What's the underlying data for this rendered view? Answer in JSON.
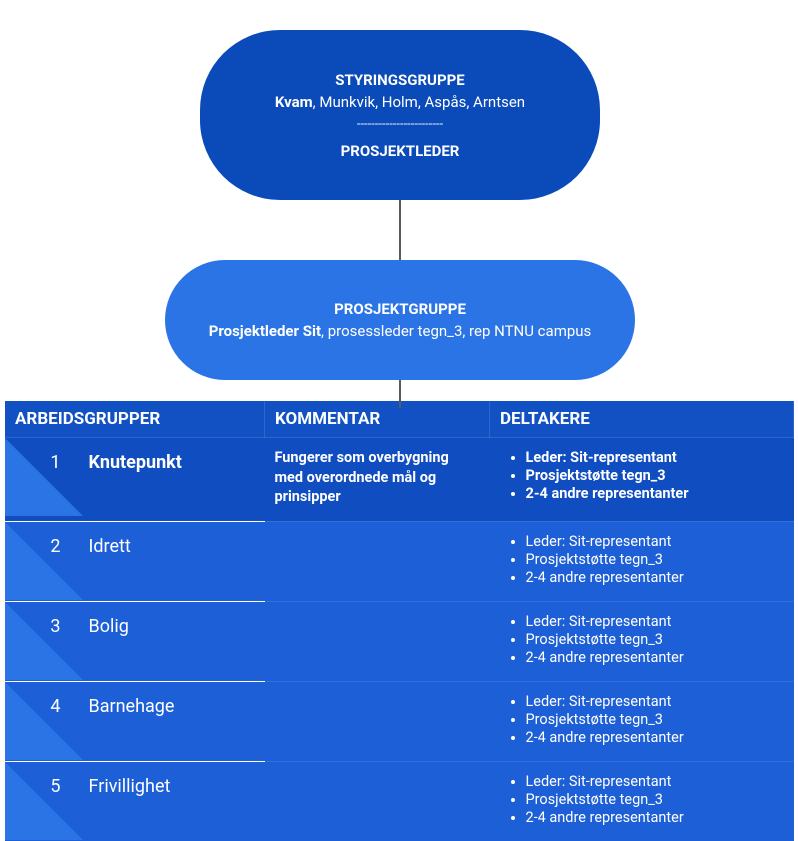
{
  "colors": {
    "node_top_bg": "#0a4ab9",
    "node_mid_bg": "#2b74e6",
    "header_bg": "#1151c3",
    "row_bold_bg": "#0f4dc0",
    "row_bg": "#1d5fd7",
    "triangle_bg": "#2b74e6",
    "connector": "#5a5a5a"
  },
  "top_node": {
    "title": "STYRINGSGRUPPE",
    "members_bold": "Kvam",
    "members_rest": ", Munkvik, Holm, Aspås, Arntsen",
    "divider": "------------------------",
    "subtitle": "PROSJEKTLEDER"
  },
  "mid_node": {
    "title": "PROSJEKTGRUPPE",
    "members_bold": "Prosjektleder Sit",
    "members_rest": ", prosessleder tegn_3, rep NTNU campus"
  },
  "table": {
    "headers": {
      "col1": "ARBEIDSGRUPPER",
      "col2": "KOMMENTAR",
      "col3": "DELTAKERE"
    },
    "rows": [
      {
        "num": "1",
        "name": "Knutepunkt",
        "bold": true,
        "kommentar": "Fungerer som overbygning med overordnede mål og prinsipper",
        "deltakere": [
          "Leder: Sit-representant",
          "Prosjektstøtte tegn_3",
          "2-4 andre representanter"
        ]
      },
      {
        "num": "2",
        "name": "Idrett",
        "bold": false,
        "kommentar": "",
        "deltakere": [
          "Leder: Sit-representant",
          "Prosjektstøtte tegn_3",
          "2-4 andre representanter"
        ]
      },
      {
        "num": "3",
        "name": "Bolig",
        "bold": false,
        "kommentar": "",
        "deltakere": [
          "Leder: Sit-representant",
          "Prosjektstøtte tegn_3",
          "2-4 andre representanter"
        ]
      },
      {
        "num": "4",
        "name": "Barnehage",
        "bold": false,
        "kommentar": "",
        "deltakere": [
          "Leder: Sit-representant",
          "Prosjektstøtte tegn_3",
          "2-4 andre representanter"
        ]
      },
      {
        "num": "5",
        "name": "Frivillighet",
        "bold": false,
        "kommentar": "",
        "deltakere": [
          "Leder: Sit-representant",
          "Prosjektstøtte tegn_3",
          "2-4 andre representanter"
        ]
      }
    ]
  }
}
